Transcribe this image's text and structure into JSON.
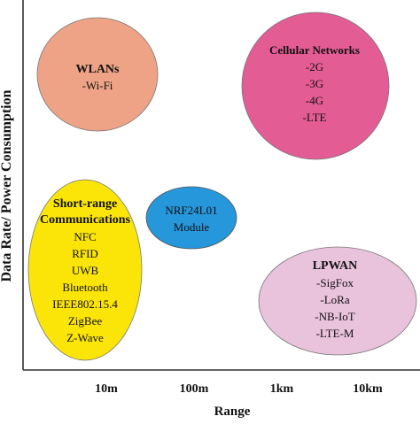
{
  "y_axis_label": "Data Rate/ Power Consumption",
  "x_axis_label": "Range",
  "x_ticks": [
    "10m",
    "100m",
    "1km",
    "10km"
  ],
  "colors": {
    "wlan": "#eea386",
    "cellular": "#e45c94",
    "short_range": "#fbe509",
    "nrf": "#2797dc",
    "lpwan": "#e9c2dc"
  },
  "groups": {
    "wlan": {
      "title": "WLANs",
      "items": [
        "-Wi-Fi"
      ]
    },
    "cellular": {
      "title": "Cellular Networks",
      "items": [
        "-2G",
        "-3G",
        "-4G",
        "-LTE"
      ]
    },
    "short_range": {
      "title_line1": "Short-range",
      "title_line2": "Communications",
      "items": [
        "NFC",
        "RFID",
        "UWB",
        "Bluetooth",
        "IEEE802.15.4",
        "ZigBee",
        "Z-Wave"
      ]
    },
    "nrf": {
      "title": "NRF24L01",
      "items": [
        "Module"
      ]
    },
    "lpwan": {
      "title": "LPWAN",
      "items": [
        "-SigFox",
        "-LoRa",
        "-NB-IoT",
        "-LTE-M"
      ]
    }
  }
}
